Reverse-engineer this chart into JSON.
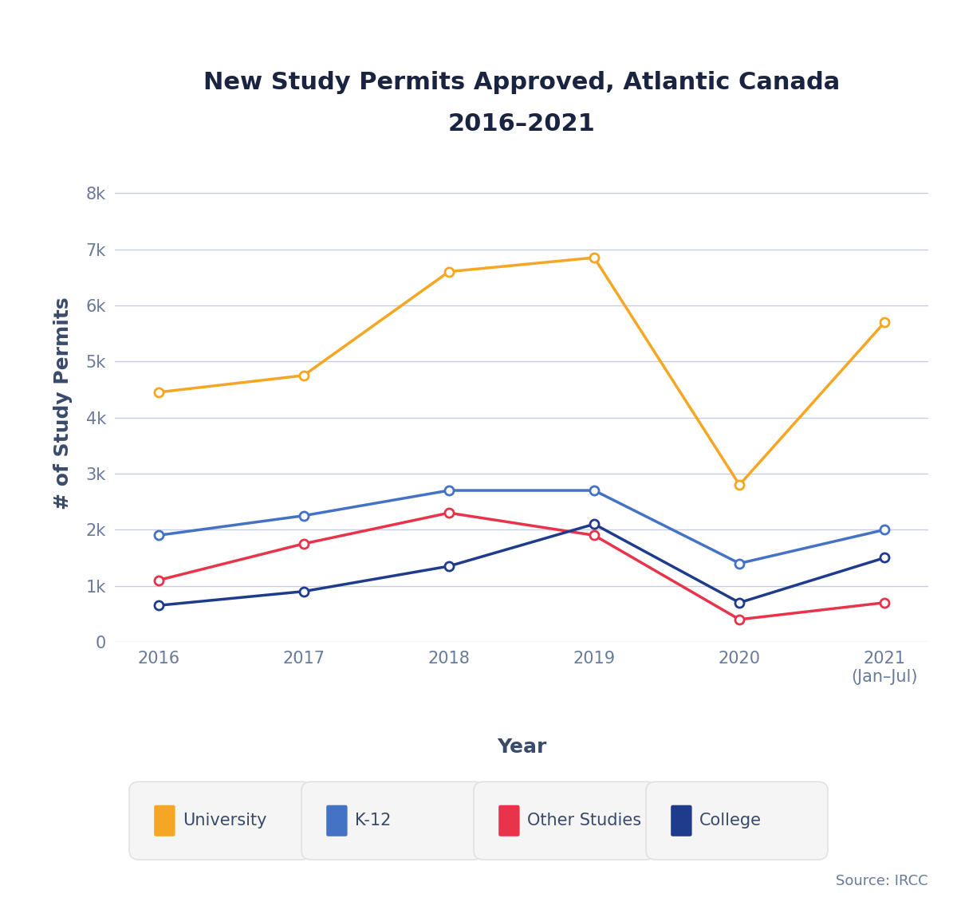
{
  "title_line1": "New Study Permits Approved, Atlantic Canada",
  "title_line2": "2016–2021",
  "xlabel": "Year",
  "ylabel": "# of Study Permits",
  "years": [
    2016,
    2017,
    2018,
    2019,
    2020,
    2021
  ],
  "xtick_labels": [
    "2016",
    "2017",
    "2018",
    "2019",
    "2020",
    "2021\n(Jan–Jul)"
  ],
  "series": {
    "University": {
      "values": [
        4450,
        4750,
        6600,
        6850,
        2800,
        5700
      ],
      "color": "#F5A623",
      "marker": "o",
      "linewidth": 2.5,
      "markersize": 8,
      "zorder": 3
    },
    "K-12": {
      "values": [
        1900,
        2250,
        2700,
        2700,
        1400,
        2000
      ],
      "color": "#4472C4",
      "marker": "o",
      "linewidth": 2.5,
      "markersize": 8,
      "zorder": 3
    },
    "Other Studies": {
      "values": [
        1100,
        1750,
        2300,
        1900,
        400,
        700
      ],
      "color": "#E8334A",
      "marker": "o",
      "linewidth": 2.5,
      "markersize": 8,
      "zorder": 3
    },
    "College": {
      "values": [
        650,
        900,
        1350,
        2100,
        700,
        1500
      ],
      "color": "#1F3B8C",
      "marker": "o",
      "linewidth": 2.5,
      "markersize": 8,
      "zorder": 3
    }
  },
  "series_order": [
    "University",
    "K-12",
    "Other Studies",
    "College"
  ],
  "ylim": [
    0,
    8500
  ],
  "yticks": [
    0,
    1000,
    2000,
    3000,
    4000,
    5000,
    6000,
    7000,
    8000
  ],
  "ytick_labels": [
    "0",
    "1k",
    "2k",
    "3k",
    "4k",
    "5k",
    "6k",
    "7k",
    "8k"
  ],
  "grid_color": "#C8CCE0",
  "background_color": "#FFFFFF",
  "title_color": "#1A2340",
  "label_color": "#3A4A6A",
  "tick_color": "#6A7A9A",
  "title_fontsize": 22,
  "label_fontsize": 18,
  "tick_fontsize": 15,
  "legend_fontsize": 15,
  "source_text": "Source: IRCC",
  "source_fontsize": 13,
  "legend_box_color": "#EEEEEE",
  "legend_box_edge": "#CCCCCC"
}
